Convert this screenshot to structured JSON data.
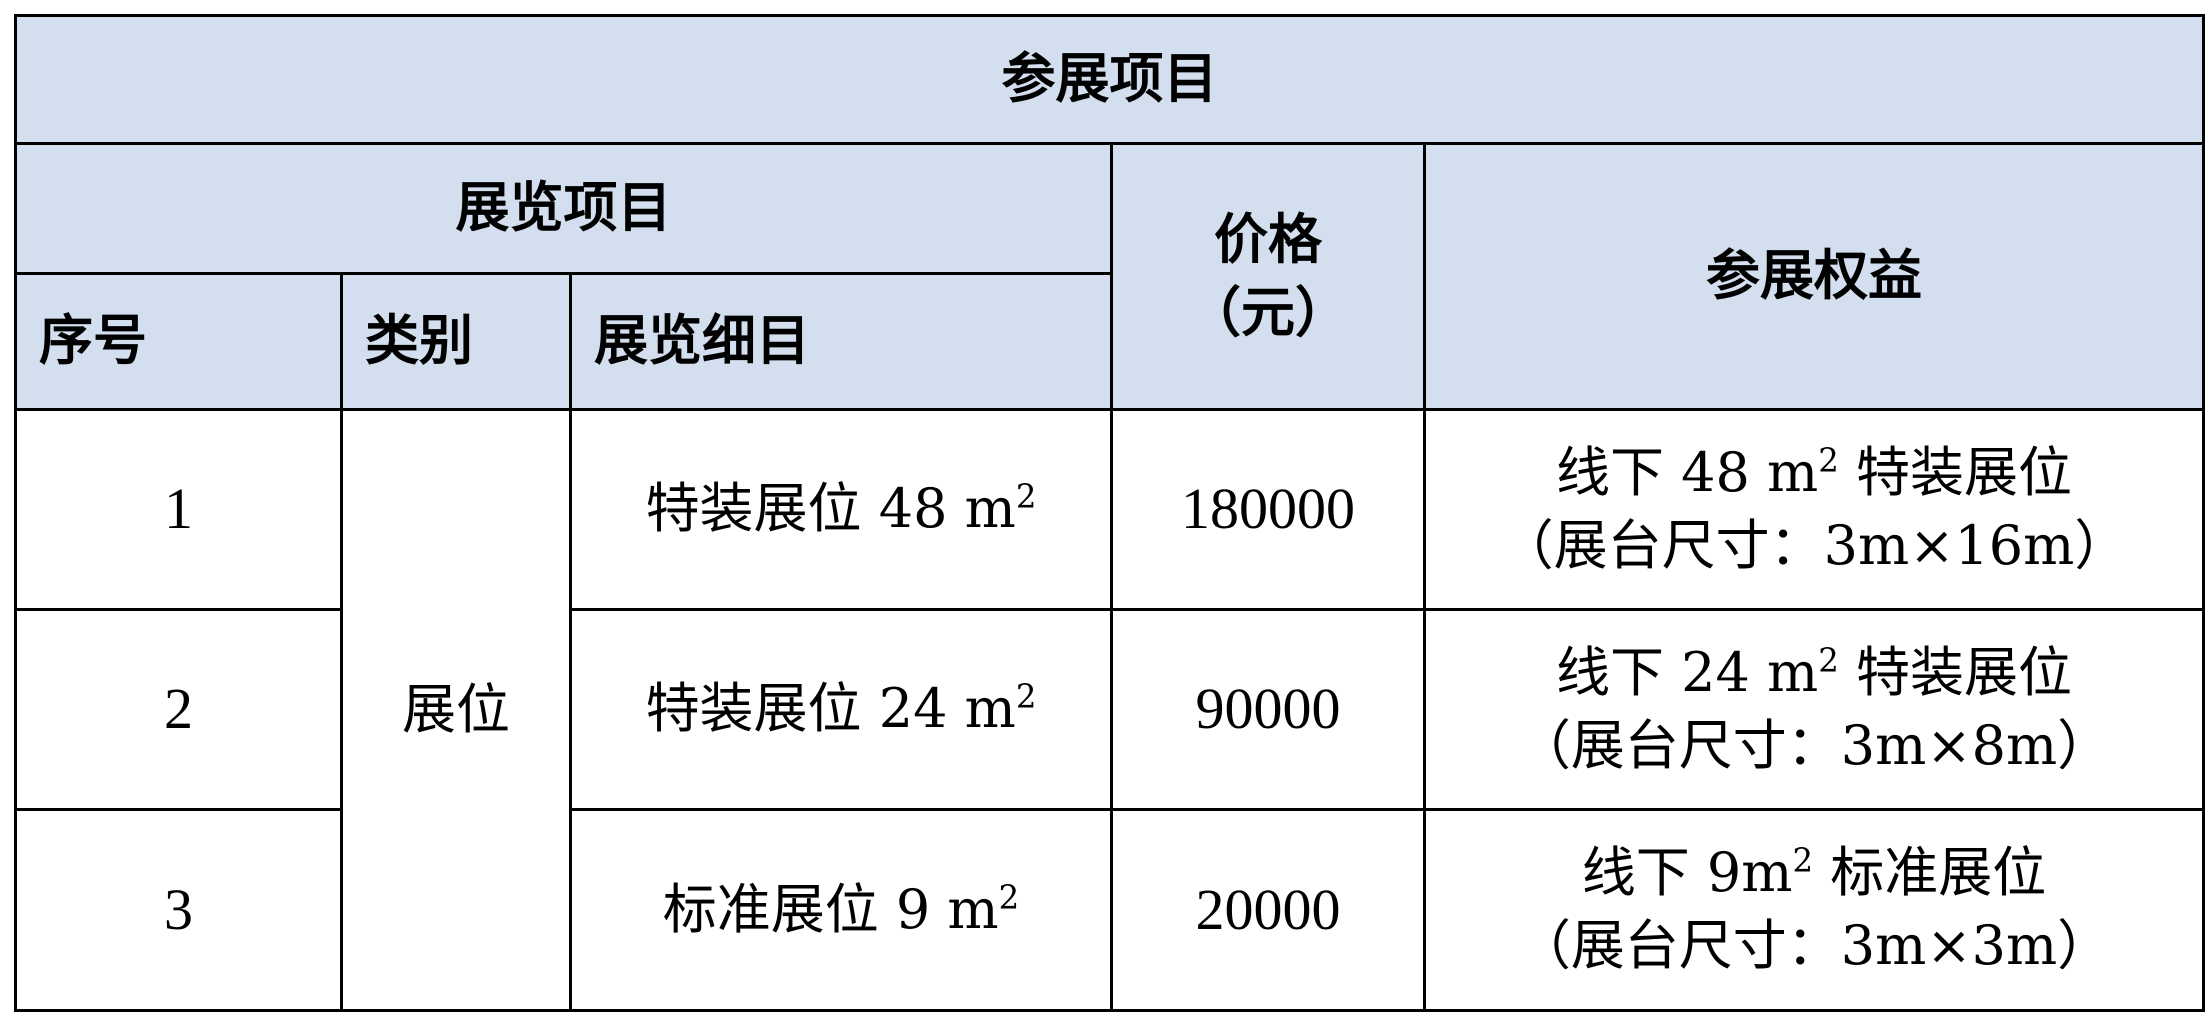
{
  "table": {
    "title": "参展项目",
    "group_header": "展览项目",
    "headers": {
      "index": "序号",
      "category": "类别",
      "detail": "展览细目",
      "price_line1": "价格",
      "price_line2": "（元）",
      "benefits": "参展权益"
    },
    "header_bg": "#d3dfee",
    "category_merged": "展位",
    "rows": [
      {
        "index": "1",
        "detail": "特装展位 48 m",
        "detail_sup": "2",
        "price": "180000",
        "benefit_line1": "线下 48 m",
        "benefit_sup": "2",
        "benefit_line1_tail": " 特装展位",
        "benefit_line2": "（展台尺寸：3m×16m）"
      },
      {
        "index": "2",
        "detail": "特装展位 24 m",
        "detail_sup": "2",
        "price": "90000",
        "benefit_line1": "线下 24 m",
        "benefit_sup": "2",
        "benefit_line1_tail": " 特装展位",
        "benefit_line2": "（展台尺寸：3m×8m）"
      },
      {
        "index": "3",
        "detail": "标准展位 9 m",
        "detail_sup": "2",
        "price": "20000",
        "benefit_line1": "线下 9m",
        "benefit_sup": "2",
        "benefit_line1_tail": " 标准展位",
        "benefit_line2": "（展台尺寸：3m×3m）"
      }
    ]
  }
}
